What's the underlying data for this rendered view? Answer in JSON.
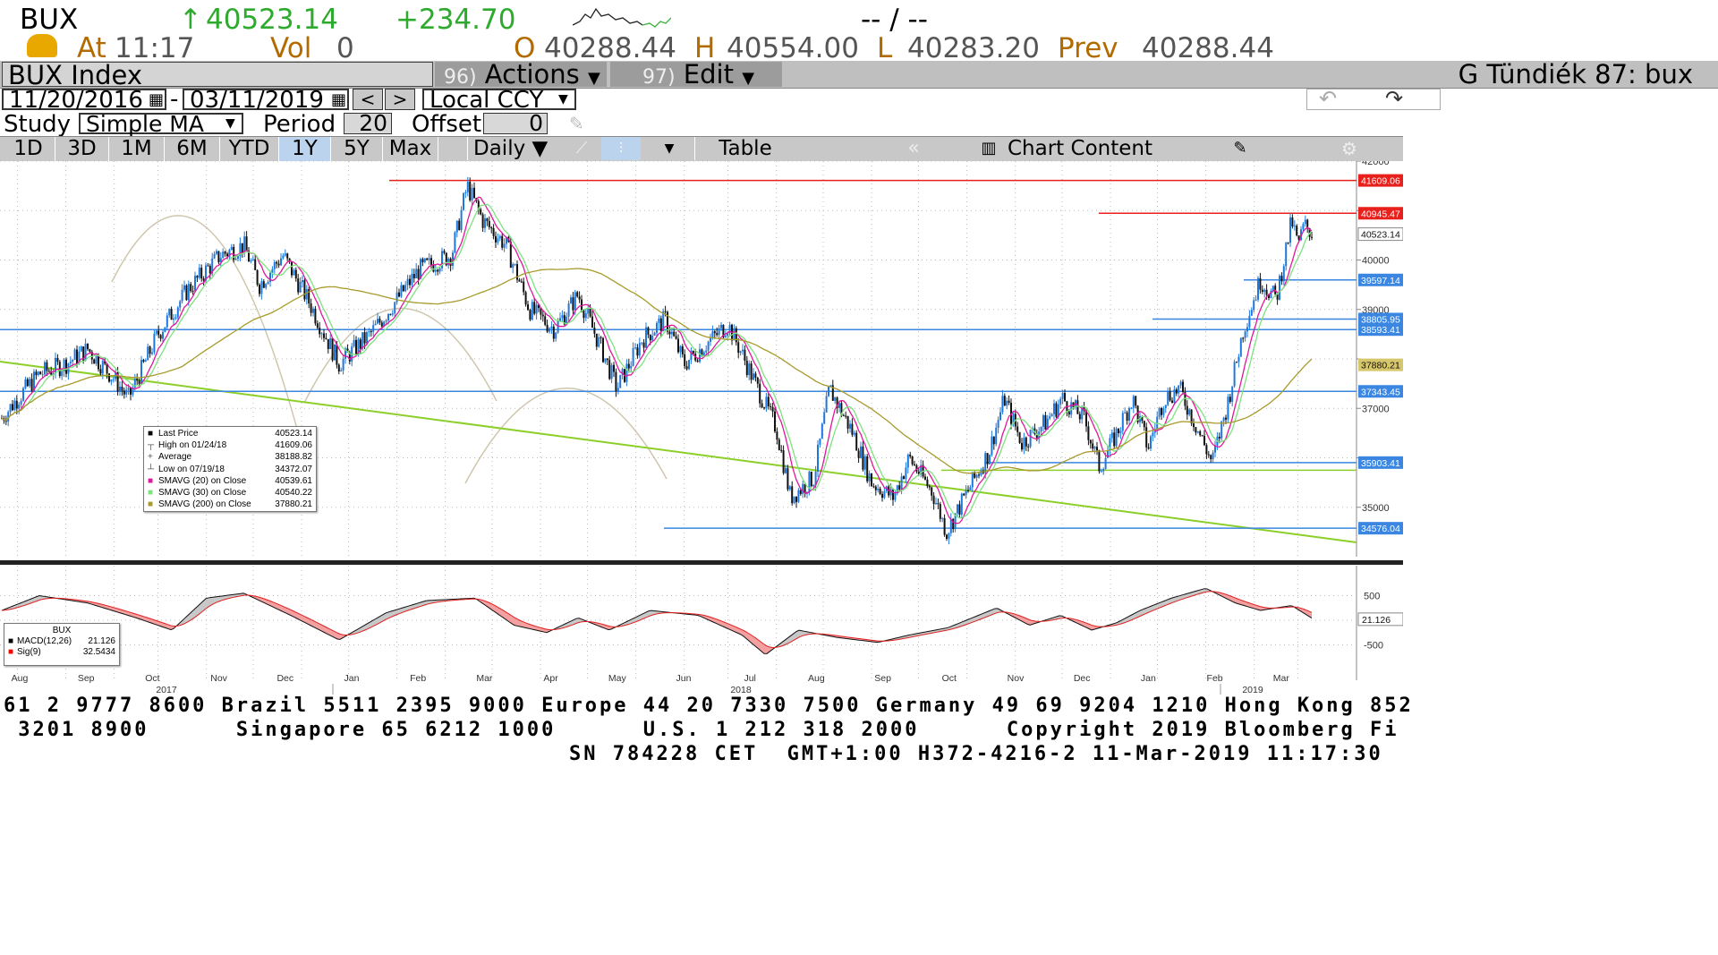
{
  "header": {
    "symbol": "BUX",
    "last_arrow": "↑",
    "last_price": "40523.14",
    "change": "+234.70",
    "bid_ask": "-- / --",
    "at_label": "At",
    "time": "11:17",
    "vol_label": "Vol",
    "vol_value": "0",
    "open_label": "O",
    "open_value": "40288.44",
    "high_label": "H",
    "high_value": "40554.00",
    "low_label": "L",
    "low_value": "40283.20",
    "prev_label": "Prev",
    "prev_value": "40288.44"
  },
  "menubar": {
    "title": "BUX Index",
    "actions_num": "96)",
    "actions_label": "Actions",
    "edit_num": "97)",
    "edit_label": "Edit",
    "right_title": "G Tündiék 87: bux"
  },
  "controls": {
    "start_date": "11/20/2016",
    "dash": "-",
    "end_date": "03/11/2019",
    "currency": "Local CCY",
    "study_label": "Study",
    "study_value": "Simple MA",
    "period_label": "Period",
    "period_value": "20",
    "offset_label": "Offset",
    "offset_value": "0"
  },
  "range_buttons": [
    "1D",
    "3D",
    "1M",
    "6M",
    "YTD",
    "1Y",
    "5Y",
    "Max"
  ],
  "active_range": "1Y",
  "frequency": "Daily ▼",
  "table_label": "Table",
  "chart_content_label": "Chart Content",
  "legend": {
    "rows": [
      {
        "marker": "■",
        "label": "Last Price",
        "value": "40523.14",
        "color": "#000000"
      },
      {
        "marker": "┬",
        "label": "High on 01/24/18",
        "value": "41609.06",
        "color": "#555555"
      },
      {
        "marker": "+",
        "label": "Average",
        "value": "38188.82",
        "color": "#555555"
      },
      {
        "marker": "┴",
        "label": "Low on 07/19/18",
        "value": "34372.07",
        "color": "#555555"
      },
      {
        "marker": "■",
        "label": "SMAVG (20)  on Close",
        "value": "40539.61",
        "color": "#e0189a"
      },
      {
        "marker": "■",
        "label": "SMAVG (30)  on Close",
        "value": "40540.22",
        "color": "#7ee27e"
      },
      {
        "marker": "■",
        "label": "SMAVG (200)  on Close",
        "value": "37880.21",
        "color": "#a89a2c"
      }
    ]
  },
  "macd_legend": {
    "title": "BUX",
    "rows": [
      {
        "label": "MACD(12,26)",
        "value": "21.126",
        "color": "#000000"
      },
      {
        "label": "Sig(9)",
        "value": "32.5434",
        "color": "#ff0000"
      }
    ]
  },
  "chart_data": [
    {
      "type": "candlestick",
      "title": "BUX Index",
      "ylim": [
        34000,
        42000
      ],
      "y_ticks": [
        35000,
        36000,
        37000,
        38000,
        39000,
        40000,
        41000,
        42000
      ],
      "y_tick_labels": [
        "35000",
        "",
        "37000",
        "",
        "39000",
        "40000",
        "",
        "42000"
      ],
      "x_month_labels": [
        "Aug",
        "Sep",
        "Oct",
        "Nov",
        "Dec",
        "Jan",
        "Feb",
        "Mar",
        "Apr",
        "May",
        "Jun",
        "Jul",
        "Aug",
        "Sep",
        "Oct",
        "Nov",
        "Dec",
        "Jan",
        "Feb",
        "Mar"
      ],
      "x_year_labels": [
        "2017",
        "2018",
        "2019"
      ],
      "close_path": [
        {
          "date": "2016-11-21",
          "close": 36800
        },
        {
          "date": "2016-12-01",
          "close": 37200
        },
        {
          "date": "2016-12-15",
          "close": 37700
        },
        {
          "date": "2017-01-01",
          "close": 37900
        },
        {
          "date": "2017-01-15",
          "close": 38200
        },
        {
          "date": "2017-02-01",
          "close": 37600
        },
        {
          "date": "2017-02-10",
          "close": 37200
        },
        {
          "date": "2017-03-01",
          "close": 38500
        },
        {
          "date": "2017-03-20",
          "close": 39400
        },
        {
          "date": "2017-04-10",
          "close": 40100
        },
        {
          "date": "2017-04-25",
          "close": 40300
        },
        {
          "date": "2017-05-05",
          "close": 39500
        },
        {
          "date": "2017-05-20",
          "close": 40100
        },
        {
          "date": "2017-06-05",
          "close": 39200
        },
        {
          "date": "2017-06-25",
          "close": 37900
        },
        {
          "date": "2017-07-15",
          "close": 38500
        },
        {
          "date": "2017-08-01",
          "close": 39200
        },
        {
          "date": "2017-08-15",
          "close": 39800
        },
        {
          "date": "2017-09-05",
          "close": 40100
        },
        {
          "date": "2017-09-15",
          "close": 41500
        },
        {
          "date": "2017-09-25",
          "close": 40800
        },
        {
          "date": "2017-10-10",
          "close": 40300
        },
        {
          "date": "2017-10-25",
          "close": 39000
        },
        {
          "date": "2017-11-10",
          "close": 38600
        },
        {
          "date": "2017-11-25",
          "close": 39300
        },
        {
          "date": "2017-12-10",
          "close": 38200
        },
        {
          "date": "2017-12-20",
          "close": 37400
        },
        {
          "date": "2018-01-05",
          "close": 38400
        },
        {
          "date": "2018-01-20",
          "close": 38800
        },
        {
          "date": "2018-02-01",
          "close": 37900
        },
        {
          "date": "2018-02-15",
          "close": 38300
        },
        {
          "date": "2018-03-01",
          "close": 38700
        },
        {
          "date": "2018-03-10",
          "close": 38100
        },
        {
          "date": "2018-03-20",
          "close": 37400
        },
        {
          "date": "2018-04-01",
          "close": 36600
        },
        {
          "date": "2018-04-10",
          "close": 35200
        },
        {
          "date": "2018-04-25",
          "close": 35600
        },
        {
          "date": "2018-05-05",
          "close": 37400
        },
        {
          "date": "2018-05-20",
          "close": 36500
        },
        {
          "date": "2018-06-01",
          "close": 35500
        },
        {
          "date": "2018-06-15",
          "close": 35200
        },
        {
          "date": "2018-06-25",
          "close": 36000
        },
        {
          "date": "2018-07-10",
          "close": 35300
        },
        {
          "date": "2018-07-19",
          "close": 34500
        },
        {
          "date": "2018-08-01",
          "close": 35300
        },
        {
          "date": "2018-08-15",
          "close": 36100
        },
        {
          "date": "2018-08-25",
          "close": 37200
        },
        {
          "date": "2018-09-05",
          "close": 36300
        },
        {
          "date": "2018-09-20",
          "close": 36700
        },
        {
          "date": "2018-10-01",
          "close": 37200
        },
        {
          "date": "2018-10-15",
          "close": 36800
        },
        {
          "date": "2018-10-25",
          "close": 35800
        },
        {
          "date": "2018-11-05",
          "close": 36500
        },
        {
          "date": "2018-11-15",
          "close": 37200
        },
        {
          "date": "2018-11-25",
          "close": 36200
        },
        {
          "date": "2018-12-05",
          "close": 37200
        },
        {
          "date": "2018-12-15",
          "close": 37400
        },
        {
          "date": "2018-12-25",
          "close": 36700
        },
        {
          "date": "2019-01-05",
          "close": 35900
        },
        {
          "date": "2019-01-15",
          "close": 37100
        },
        {
          "date": "2019-01-25",
          "close": 38600
        },
        {
          "date": "2019-02-05",
          "close": 39600
        },
        {
          "date": "2019-02-15",
          "close": 39200
        },
        {
          "date": "2019-02-25",
          "close": 40800
        },
        {
          "date": "2019-03-01",
          "close": 40300
        },
        {
          "date": "2019-03-05",
          "close": 40700
        },
        {
          "date": "2019-03-11",
          "close": 40523
        }
      ],
      "horizontal_levels": [
        {
          "value": 41609.06,
          "label": "41609.06",
          "color": "#e8201c"
        },
        {
          "value": 40945.47,
          "label": "40945.47",
          "color": "#e8201c"
        },
        {
          "value": 40523.14,
          "label": "40523.14",
          "color": "#ffffff"
        },
        {
          "value": 39597.14,
          "label": "39597.14",
          "color": "#3a86e0"
        },
        {
          "value": 38805.95,
          "label": "38805.95",
          "color": "#3a86e0"
        },
        {
          "value": 38593.41,
          "label": "38593.41",
          "color": "#3a86e0"
        },
        {
          "value": 37880.21,
          "label": "37880.21",
          "color": "#d6c66c"
        },
        {
          "value": 37343.45,
          "label": "37343.45",
          "color": "#3a86e0"
        },
        {
          "value": 35903.41,
          "label": "35903.41",
          "color": "#3a86e0"
        },
        {
          "value": 34576.04,
          "label": "34576.04",
          "color": "#3a86e0"
        }
      ],
      "grid": true
    },
    {
      "type": "area",
      "title": "BUX",
      "series": [
        {
          "name": "MACD(12,26)",
          "last": 21.126,
          "color": "#000000"
        },
        {
          "name": "Sig(9)",
          "last": 32.5434,
          "color": "#ff0000"
        }
      ],
      "y_tick_labels": [
        "500",
        "-500"
      ],
      "macd_path": [
        {
          "date": "2016-11-21",
          "value": 200
        },
        {
          "date": "2016-12-15",
          "value": 500
        },
        {
          "date": "2017-01-15",
          "value": 350
        },
        {
          "date": "2017-02-15",
          "value": 50
        },
        {
          "date": "2017-03-10",
          "value": -200
        },
        {
          "date": "2017-04-01",
          "value": 450
        },
        {
          "date": "2017-04-25",
          "value": 550
        },
        {
          "date": "2017-05-25",
          "value": 100
        },
        {
          "date": "2017-06-25",
          "value": -400
        },
        {
          "date": "2017-07-25",
          "value": 150
        },
        {
          "date": "2017-08-20",
          "value": 400
        },
        {
          "date": "2017-09-20",
          "value": 450
        },
        {
          "date": "2017-10-15",
          "value": -100
        },
        {
          "date": "2017-11-05",
          "value": -250
        },
        {
          "date": "2017-11-25",
          "value": 50
        },
        {
          "date": "2017-12-15",
          "value": -200
        },
        {
          "date": "2018-01-10",
          "value": 200
        },
        {
          "date": "2018-02-10",
          "value": 100
        },
        {
          "date": "2018-03-10",
          "value": -300
        },
        {
          "date": "2018-03-25",
          "value": -700
        },
        {
          "date": "2018-04-15",
          "value": -200
        },
        {
          "date": "2018-05-10",
          "value": -350
        },
        {
          "date": "2018-06-05",
          "value": -450
        },
        {
          "date": "2018-06-25",
          "value": -300
        },
        {
          "date": "2018-07-20",
          "value": -150
        },
        {
          "date": "2018-08-20",
          "value": 250
        },
        {
          "date": "2018-09-10",
          "value": -100
        },
        {
          "date": "2018-09-30",
          "value": 100
        },
        {
          "date": "2018-10-20",
          "value": -200
        },
        {
          "date": "2018-11-05",
          "value": -50
        },
        {
          "date": "2018-11-20",
          "value": 200
        },
        {
          "date": "2018-12-10",
          "value": 450
        },
        {
          "date": "2019-01-01",
          "value": 650
        },
        {
          "date": "2019-01-20",
          "value": 350
        },
        {
          "date": "2019-02-05",
          "value": 200
        },
        {
          "date": "2019-02-25",
          "value": 300
        },
        {
          "date": "2019-03-11",
          "value": 21
        }
      ]
    }
  ],
  "ticker": {
    "line1": "61 2 9777 8600 Brazil 5511 2395 9000 Europe 44 20 7330 7500 Germany 49 69 9204 1210 Hong Kong 852",
    "line2": " 3201 8900      Singapore 65 6212 1000      U.S. 1 212 318 2000      Copyright 2019 Bloomberg Fi",
    "line3": "SN 784228 CET  GMT+1:00 H372-4216-2 11-Mar-2019 11:17:30"
  }
}
